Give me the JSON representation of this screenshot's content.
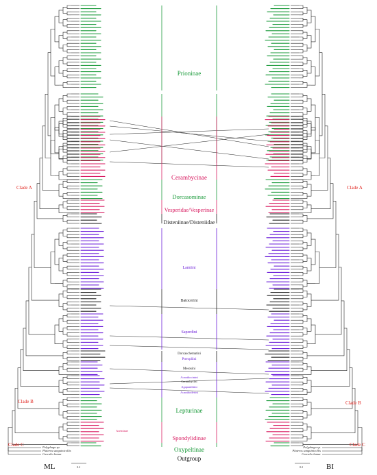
{
  "figure": {
    "left_panel_label": "ML",
    "right_panel_label": "BI",
    "left_scale": "0.2",
    "right_scale": "0.2",
    "clade_labels": {
      "clade_a": "Clade A",
      "clade_b": "Clade B",
      "clade_c": "Clade C"
    },
    "subfamilies": [
      {
        "id": "prioninae",
        "label": "Prioninae",
        "color": "#1a9a3a"
      },
      {
        "id": "cerambycinae",
        "label": "Cerambycinae",
        "color": "#d81b60"
      },
      {
        "id": "dorcasominae",
        "label": "Dorcasominae",
        "color": "#1a9a3a"
      },
      {
        "id": "vesperidae",
        "label": "Vesperidae/Vesperinae",
        "color": "#d81b60"
      },
      {
        "id": "disteniinae",
        "label": "Disteniinae/Disteniidae",
        "color": "#222222"
      },
      {
        "id": "lamiini",
        "label": "Lamiini",
        "color": "#6a1bd8"
      },
      {
        "id": "batocerini",
        "label": "Batocerini",
        "color": "#222222"
      },
      {
        "id": "saperdini",
        "label": "Saperdini",
        "color": "#6a1bd8"
      },
      {
        "id": "dorcaschematini",
        "label": "Dorcaschematini",
        "color": "#222222"
      },
      {
        "id": "pteropliini",
        "label": "Pteropliini",
        "color": "#6a1bd8"
      },
      {
        "id": "mesosini",
        "label": "Mesosini",
        "color": "#222222"
      },
      {
        "id": "acanthocinini",
        "label": "Acanthocinini",
        "color": "#6a1bd8"
      },
      {
        "id": "cerambycini",
        "label": "Cerambycini",
        "color": "#222222"
      },
      {
        "id": "agapanthiini",
        "label": "Agapanthiini",
        "color": "#6a1bd8"
      },
      {
        "id": "acanthoderini",
        "label": "Acanthoderini",
        "color": "#6a1bd8"
      },
      {
        "id": "lepturinae",
        "label": "Lepturinae",
        "color": "#1a9a3a"
      },
      {
        "id": "aseminae",
        "label": "Aseminae",
        "color": "#d81b60"
      },
      {
        "id": "spondylidinae",
        "label": "Spondylidinae",
        "color": "#d81b60"
      },
      {
        "id": "oxypeltinae",
        "label": "Oxypeltinae",
        "color": "#1a9a3a"
      },
      {
        "id": "outgroup",
        "label": "Outgroup",
        "color": "#111111"
      }
    ],
    "outgroup_taxa": [
      "Polyphaga sp.",
      "Plateros sanguinicollis",
      "Curculio lamar"
    ],
    "colors": {
      "green": "#1a9a3a",
      "pink": "#d81b60",
      "purple": "#6a1bd8",
      "black": "#222222",
      "clade_label": "#e0221c"
    }
  }
}
